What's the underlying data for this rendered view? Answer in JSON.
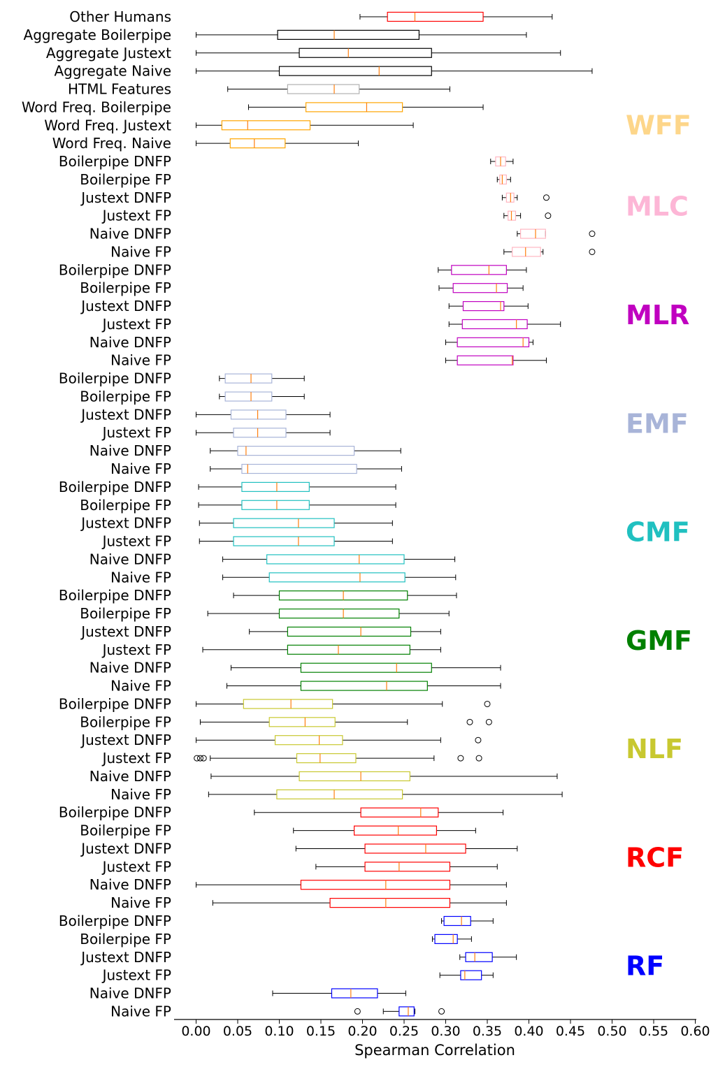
{
  "chart_data": {
    "type": "boxplot",
    "orientation": "horizontal",
    "xlabel": "Spearman Correlation",
    "xlim": [
      -0.02,
      0.6
    ],
    "xticks": [
      0.0,
      0.05,
      0.1,
      0.15,
      0.2,
      0.25,
      0.3,
      0.35,
      0.4,
      0.45,
      0.5,
      0.55,
      0.6
    ],
    "xtick_labels": [
      "0.00",
      "0.05",
      "0.10",
      "0.15",
      "0.20",
      "0.25",
      "0.30",
      "0.35",
      "0.40",
      "0.45",
      "0.50",
      "0.55",
      "0.60"
    ],
    "median_color": "#ff7f0e",
    "groups": [
      {
        "label": "",
        "color": "#ff0000",
        "rows": [
          {
            "label": "Other Humans",
            "whislo": 0.197,
            "q1": 0.23,
            "med": 0.263,
            "q3": 0.345,
            "whishi": 0.428,
            "fliers": []
          }
        ]
      },
      {
        "label": "",
        "color": "#000000",
        "rows": [
          {
            "label": "Aggregate Boilerpipe",
            "whislo": 0.0,
            "q1": 0.098,
            "med": 0.166,
            "q3": 0.268,
            "whishi": 0.397,
            "fliers": []
          },
          {
            "label": "Aggregate Justext",
            "whislo": 0.0,
            "q1": 0.124,
            "med": 0.183,
            "q3": 0.283,
            "whishi": 0.438,
            "fliers": []
          },
          {
            "label": "Aggregate Naive",
            "whislo": 0.0,
            "q1": 0.1,
            "med": 0.22,
            "q3": 0.283,
            "whishi": 0.476,
            "fliers": []
          }
        ]
      },
      {
        "label": "",
        "color": "#b0b0b0",
        "rows": [
          {
            "label": "HTML Features",
            "whislo": 0.038,
            "q1": 0.11,
            "med": 0.166,
            "q3": 0.196,
            "whishi": 0.305,
            "fliers": []
          }
        ]
      },
      {
        "label": "WFF",
        "color": "#ffa500",
        "label_color": "#fdd68a",
        "rows": [
          {
            "label": "Word Freq. Boilerpipe",
            "whislo": 0.063,
            "q1": 0.132,
            "med": 0.205,
            "q3": 0.248,
            "whishi": 0.345,
            "fliers": []
          },
          {
            "label": "Word Freq. Justext",
            "whislo": 0.0,
            "q1": 0.031,
            "med": 0.062,
            "q3": 0.137,
            "whishi": 0.261,
            "fliers": []
          },
          {
            "label": "Word Freq. Naive",
            "whislo": 0.0,
            "q1": 0.041,
            "med": 0.07,
            "q3": 0.107,
            "whishi": 0.195,
            "fliers": []
          }
        ]
      },
      {
        "label": "MLC",
        "color": "#ffb6c1",
        "label_color": "#fdb6d6",
        "rows": [
          {
            "label": "Boilerpipe DNFP",
            "whislo": 0.354,
            "q1": 0.36,
            "med": 0.366,
            "q3": 0.372,
            "whishi": 0.381,
            "fliers": []
          },
          {
            "label": "Boilerpipe FP",
            "whislo": 0.362,
            "q1": 0.365,
            "med": 0.368,
            "q3": 0.373,
            "whishi": 0.378,
            "fliers": []
          },
          {
            "label": "Justext DNFP",
            "whislo": 0.368,
            "q1": 0.373,
            "med": 0.378,
            "q3": 0.382,
            "whishi": 0.386,
            "fliers": [
              0.421
            ]
          },
          {
            "label": "Justext FP",
            "whislo": 0.37,
            "q1": 0.375,
            "med": 0.379,
            "q3": 0.384,
            "whishi": 0.39,
            "fliers": [
              0.423
            ]
          },
          {
            "label": "Naive DNFP",
            "whislo": 0.386,
            "q1": 0.39,
            "med": 0.408,
            "q3": 0.42,
            "whishi": 0.42,
            "fliers": [
              0.476
            ]
          },
          {
            "label": "Naive FP",
            "whislo": 0.37,
            "q1": 0.38,
            "med": 0.396,
            "q3": 0.414,
            "whishi": 0.417,
            "fliers": [
              0.476
            ]
          }
        ]
      },
      {
        "label": "MLR",
        "color": "#c000c0",
        "label_color": "#c000c0",
        "rows": [
          {
            "label": "Boilerpipe DNFP",
            "whislo": 0.291,
            "q1": 0.307,
            "med": 0.352,
            "q3": 0.373,
            "whishi": 0.397,
            "fliers": []
          },
          {
            "label": "Boilerpipe FP",
            "whislo": 0.292,
            "q1": 0.309,
            "med": 0.361,
            "q3": 0.374,
            "whishi": 0.393,
            "fliers": []
          },
          {
            "label": "Justext DNFP",
            "whislo": 0.304,
            "q1": 0.321,
            "med": 0.366,
            "q3": 0.37,
            "whishi": 0.399,
            "fliers": []
          },
          {
            "label": "Justext FP",
            "whislo": 0.304,
            "q1": 0.32,
            "med": 0.385,
            "q3": 0.398,
            "whishi": 0.438,
            "fliers": []
          },
          {
            "label": "Naive DNFP",
            "whislo": 0.3,
            "q1": 0.314,
            "med": 0.393,
            "q3": 0.4,
            "whishi": 0.405,
            "fliers": []
          },
          {
            "label": "Naive FP",
            "whislo": 0.3,
            "q1": 0.314,
            "med": 0.38,
            "q3": 0.381,
            "whishi": 0.421,
            "fliers": []
          }
        ]
      },
      {
        "label": "EMF",
        "color": "#a8b4d8",
        "label_color": "#a8b4d8",
        "rows": [
          {
            "label": "Boilerpipe DNFP",
            "whislo": 0.028,
            "q1": 0.035,
            "med": 0.066,
            "q3": 0.091,
            "whishi": 0.13,
            "fliers": []
          },
          {
            "label": "Boilerpipe FP",
            "whislo": 0.028,
            "q1": 0.035,
            "med": 0.066,
            "q3": 0.091,
            "whishi": 0.13,
            "fliers": []
          },
          {
            "label": "Justext DNFP",
            "whislo": 0.0,
            "q1": 0.042,
            "med": 0.074,
            "q3": 0.108,
            "whishi": 0.161,
            "fliers": []
          },
          {
            "label": "Justext FP",
            "whislo": 0.0,
            "q1": 0.045,
            "med": 0.074,
            "q3": 0.108,
            "whishi": 0.161,
            "fliers": []
          },
          {
            "label": "Naive DNFP",
            "whislo": 0.017,
            "q1": 0.05,
            "med": 0.06,
            "q3": 0.19,
            "whishi": 0.246,
            "fliers": []
          },
          {
            "label": "Naive FP",
            "whislo": 0.017,
            "q1": 0.055,
            "med": 0.062,
            "q3": 0.193,
            "whishi": 0.247,
            "fliers": []
          }
        ]
      },
      {
        "label": "CMF",
        "color": "#20c0c0",
        "label_color": "#20c0c0",
        "rows": [
          {
            "label": "Boilerpipe DNFP",
            "whislo": 0.003,
            "q1": 0.055,
            "med": 0.097,
            "q3": 0.136,
            "whishi": 0.24,
            "fliers": []
          },
          {
            "label": "Boilerpipe FP",
            "whislo": 0.003,
            "q1": 0.055,
            "med": 0.097,
            "q3": 0.136,
            "whishi": 0.24,
            "fliers": []
          },
          {
            "label": "Justext DNFP",
            "whislo": 0.004,
            "q1": 0.045,
            "med": 0.123,
            "q3": 0.166,
            "whishi": 0.236,
            "fliers": []
          },
          {
            "label": "Justext FP",
            "whislo": 0.004,
            "q1": 0.045,
            "med": 0.123,
            "q3": 0.166,
            "whishi": 0.236,
            "fliers": []
          },
          {
            "label": "Naive DNFP",
            "whislo": 0.032,
            "q1": 0.085,
            "med": 0.196,
            "q3": 0.25,
            "whishi": 0.311,
            "fliers": []
          },
          {
            "label": "Naive FP",
            "whislo": 0.032,
            "q1": 0.088,
            "med": 0.197,
            "q3": 0.251,
            "whishi": 0.312,
            "fliers": []
          }
        ]
      },
      {
        "label": "GMF",
        "color": "#008000",
        "label_color": "#008000",
        "rows": [
          {
            "label": "Boilerpipe DNFP",
            "whislo": 0.045,
            "q1": 0.1,
            "med": 0.177,
            "q3": 0.254,
            "whishi": 0.313,
            "fliers": []
          },
          {
            "label": "Boilerpipe FP",
            "whislo": 0.014,
            "q1": 0.1,
            "med": 0.177,
            "q3": 0.244,
            "whishi": 0.304,
            "fliers": []
          },
          {
            "label": "Justext DNFP",
            "whislo": 0.064,
            "q1": 0.11,
            "med": 0.198,
            "q3": 0.258,
            "whishi": 0.294,
            "fliers": []
          },
          {
            "label": "Justext FP",
            "whislo": 0.008,
            "q1": 0.11,
            "med": 0.171,
            "q3": 0.257,
            "whishi": 0.294,
            "fliers": []
          },
          {
            "label": "Naive DNFP",
            "whislo": 0.042,
            "q1": 0.126,
            "med": 0.241,
            "q3": 0.283,
            "whishi": 0.366,
            "fliers": []
          },
          {
            "label": "Naive FP",
            "whislo": 0.037,
            "q1": 0.126,
            "med": 0.229,
            "q3": 0.278,
            "whishi": 0.366,
            "fliers": []
          }
        ]
      },
      {
        "label": "NLF",
        "color": "#c8c830",
        "label_color": "#c8c830",
        "rows": [
          {
            "label": "Boilerpipe DNFP",
            "whislo": 0.0,
            "q1": 0.057,
            "med": 0.114,
            "q3": 0.164,
            "whishi": 0.296,
            "fliers": [
              0.35
            ]
          },
          {
            "label": "Boilerpipe FP",
            "whislo": 0.005,
            "q1": 0.088,
            "med": 0.131,
            "q3": 0.167,
            "whishi": 0.254,
            "fliers": [
              0.329,
              0.352
            ]
          },
          {
            "label": "Justext DNFP",
            "whislo": 0.0,
            "q1": 0.095,
            "med": 0.148,
            "q3": 0.176,
            "whishi": 0.294,
            "fliers": [
              0.339
            ]
          },
          {
            "label": "Justext FP",
            "whislo": 0.017,
            "q1": 0.121,
            "med": 0.149,
            "q3": 0.192,
            "whishi": 0.286,
            "fliers": [
              0.001,
              0.005,
              0.009,
              0.318,
              0.34
            ]
          },
          {
            "label": "Naive DNFP",
            "whislo": 0.018,
            "q1": 0.124,
            "med": 0.198,
            "q3": 0.257,
            "whishi": 0.434,
            "fliers": []
          },
          {
            "label": "Naive FP",
            "whislo": 0.015,
            "q1": 0.097,
            "med": 0.166,
            "q3": 0.248,
            "whishi": 0.44,
            "fliers": []
          }
        ]
      },
      {
        "label": "RCF",
        "color": "#ff0000",
        "label_color": "#ff0000",
        "rows": [
          {
            "label": "Boilerpipe DNFP",
            "whislo": 0.07,
            "q1": 0.198,
            "med": 0.27,
            "q3": 0.291,
            "whishi": 0.369,
            "fliers": []
          },
          {
            "label": "Boilerpipe FP",
            "whislo": 0.117,
            "q1": 0.19,
            "med": 0.243,
            "q3": 0.289,
            "whishi": 0.336,
            "fliers": []
          },
          {
            "label": "Justext DNFP",
            "whislo": 0.12,
            "q1": 0.203,
            "med": 0.276,
            "q3": 0.324,
            "whishi": 0.386,
            "fliers": []
          },
          {
            "label": "Justext FP",
            "whislo": 0.144,
            "q1": 0.203,
            "med": 0.244,
            "q3": 0.305,
            "whishi": 0.362,
            "fliers": []
          },
          {
            "label": "Naive DNFP",
            "whislo": 0.0,
            "q1": 0.126,
            "med": 0.228,
            "q3": 0.305,
            "whishi": 0.373,
            "fliers": []
          },
          {
            "label": "Naive FP",
            "whislo": 0.02,
            "q1": 0.161,
            "med": 0.228,
            "q3": 0.305,
            "whishi": 0.373,
            "fliers": []
          }
        ]
      },
      {
        "label": "RF",
        "color": "#0000ff",
        "label_color": "#0000ff",
        "rows": [
          {
            "label": "Boilerpipe DNFP",
            "whislo": 0.295,
            "q1": 0.298,
            "med": 0.319,
            "q3": 0.33,
            "whishi": 0.357,
            "fliers": []
          },
          {
            "label": "Boilerpipe FP",
            "whislo": 0.284,
            "q1": 0.287,
            "med": 0.309,
            "q3": 0.314,
            "whishi": 0.331,
            "fliers": []
          },
          {
            "label": "Justext DNFP",
            "whislo": 0.317,
            "q1": 0.324,
            "med": 0.335,
            "q3": 0.356,
            "whishi": 0.385,
            "fliers": []
          },
          {
            "label": "Justext FP",
            "whislo": 0.293,
            "q1": 0.318,
            "med": 0.323,
            "q3": 0.343,
            "whishi": 0.357,
            "fliers": []
          },
          {
            "label": "Naive DNFP",
            "whislo": 0.092,
            "q1": 0.163,
            "med": 0.186,
            "q3": 0.218,
            "whishi": 0.252,
            "fliers": []
          },
          {
            "label": "Naive FP",
            "whislo": 0.225,
            "q1": 0.244,
            "med": 0.255,
            "q3": 0.262,
            "whishi": 0.263,
            "fliers": [
              0.194,
              0.295
            ]
          }
        ]
      }
    ]
  }
}
